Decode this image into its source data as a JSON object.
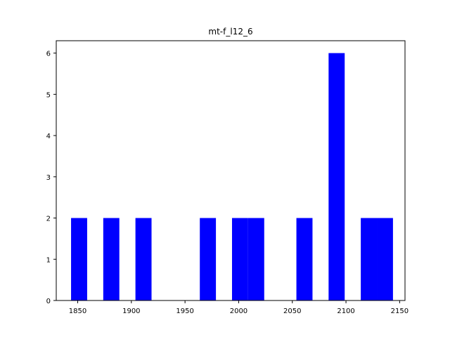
{
  "chart_data": {
    "type": "bar",
    "title": "mt-f_l12_6",
    "xlabel": "",
    "ylabel": "",
    "xlim": [
      1830,
      2155
    ],
    "ylim": [
      0,
      6.3
    ],
    "xticks": [
      1850,
      1900,
      1950,
      2000,
      2050,
      2100,
      2150
    ],
    "yticks": [
      0,
      1,
      2,
      3,
      4,
      5,
      6
    ],
    "bar_color": "#0000ff",
    "grid": false,
    "bins": [
      {
        "x0": 1843.8,
        "x1": 1858.8,
        "value": 2
      },
      {
        "x0": 1873.8,
        "x1": 1888.8,
        "value": 2
      },
      {
        "x0": 1903.8,
        "x1": 1918.8,
        "value": 2
      },
      {
        "x0": 1963.8,
        "x1": 1978.8,
        "value": 2
      },
      {
        "x0": 1993.8,
        "x1": 2008.8,
        "value": 2
      },
      {
        "x0": 2008.8,
        "x1": 2023.8,
        "value": 2
      },
      {
        "x0": 2053.8,
        "x1": 2068.8,
        "value": 2
      },
      {
        "x0": 2083.8,
        "x1": 2098.8,
        "value": 6
      },
      {
        "x0": 2113.8,
        "x1": 2128.8,
        "value": 2
      },
      {
        "x0": 2128.8,
        "x1": 2143.8,
        "value": 2
      }
    ]
  }
}
